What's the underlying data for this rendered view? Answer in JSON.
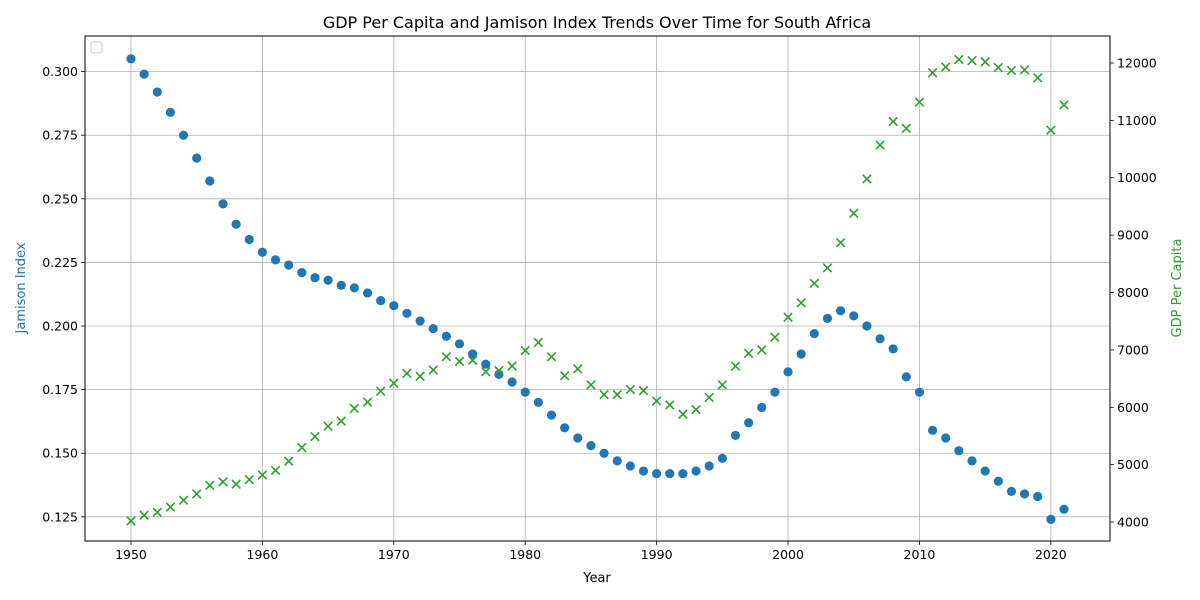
{
  "chart_data": {
    "type": "scatter",
    "title": "GDP Per Capita and Jamison Index Trends Over Time for South Africa",
    "xlabel": "Year",
    "ylabel_left": "Jamison Index",
    "ylabel_right": "GDP Per Capita",
    "xlim": [
      1946.5,
      2024.5
    ],
    "ylim_left": [
      0.1155,
      0.314
    ],
    "ylim_right": [
      3670,
      12470
    ],
    "x_ticks": [
      1950,
      1960,
      1970,
      1980,
      1990,
      2000,
      2010,
      2020
    ],
    "y_ticks_left": [
      "0.125",
      "0.150",
      "0.175",
      "0.200",
      "0.225",
      "0.250",
      "0.275",
      "0.300"
    ],
    "y_ticks_left_values": [
      0.125,
      0.15,
      0.175,
      0.2,
      0.225,
      0.25,
      0.275,
      0.3
    ],
    "y_ticks_right": [
      "4000",
      "5000",
      "6000",
      "7000",
      "8000",
      "9000",
      "10000",
      "11000",
      "12000"
    ],
    "y_ticks_right_values": [
      4000,
      5000,
      6000,
      7000,
      8000,
      9000,
      10000,
      11000,
      12000
    ],
    "grid": true,
    "legend": "top-left (empty)",
    "colors": {
      "jamison": "#1f77b4",
      "gdp": "#2ca02c"
    },
    "x": [
      1950,
      1951,
      1952,
      1953,
      1954,
      1955,
      1956,
      1957,
      1958,
      1959,
      1960,
      1961,
      1962,
      1963,
      1964,
      1965,
      1966,
      1967,
      1968,
      1969,
      1970,
      1971,
      1972,
      1973,
      1974,
      1975,
      1976,
      1977,
      1978,
      1979,
      1980,
      1981,
      1982,
      1983,
      1984,
      1985,
      1986,
      1987,
      1988,
      1989,
      1990,
      1991,
      1992,
      1993,
      1994,
      1995,
      1996,
      1997,
      1998,
      1999,
      2000,
      2001,
      2002,
      2003,
      2004,
      2005,
      2006,
      2007,
      2008,
      2009,
      2010,
      2011,
      2012,
      2013,
      2014,
      2015,
      2016,
      2017,
      2018,
      2019,
      2020,
      2021
    ],
    "series": [
      {
        "axis": "left",
        "marker": "circle",
        "values": [
          0.305,
          0.299,
          0.292,
          0.284,
          0.275,
          0.266,
          0.257,
          0.248,
          0.24,
          0.234,
          0.229,
          0.226,
          0.224,
          0.221,
          0.219,
          0.218,
          0.216,
          0.215,
          0.213,
          0.21,
          0.208,
          0.205,
          0.202,
          0.199,
          0.196,
          0.193,
          0.189,
          0.185,
          0.181,
          0.178,
          0.174,
          0.17,
          0.165,
          0.16,
          0.156,
          0.153,
          0.15,
          0.147,
          0.145,
          0.143,
          0.142,
          0.142,
          0.142,
          0.143,
          0.145,
          0.148,
          0.157,
          0.162,
          0.168,
          0.174,
          0.182,
          0.189,
          0.197,
          0.203,
          0.206,
          0.204,
          0.2,
          0.195,
          0.191,
          0.18,
          0.174,
          0.159,
          0.156,
          0.151,
          0.147,
          0.143,
          0.139,
          0.135,
          0.134,
          0.133,
          0.124,
          0.128
        ]
      },
      {
        "axis": "right",
        "marker": "x",
        "values": [
          4020,
          4120,
          4170,
          4260,
          4380,
          4490,
          4640,
          4700,
          4660,
          4740,
          4820,
          4900,
          5060,
          5300,
          5490,
          5670,
          5760,
          5980,
          6090,
          6280,
          6420,
          6590,
          6540,
          6650,
          6880,
          6800,
          6820,
          6620,
          6640,
          6720,
          6990,
          7130,
          6880,
          6550,
          6670,
          6390,
          6220,
          6220,
          6310,
          6290,
          6110,
          6040,
          5880,
          5960,
          6170,
          6390,
          6720,
          6940,
          7000,
          7220,
          7570,
          7820,
          8160,
          8430,
          8870,
          9380,
          9980,
          10570,
          10980,
          10860,
          11320,
          11830,
          11930,
          12060,
          12040,
          12020,
          11920,
          11870,
          11880,
          11740,
          10830,
          11270
        ]
      }
    ]
  }
}
